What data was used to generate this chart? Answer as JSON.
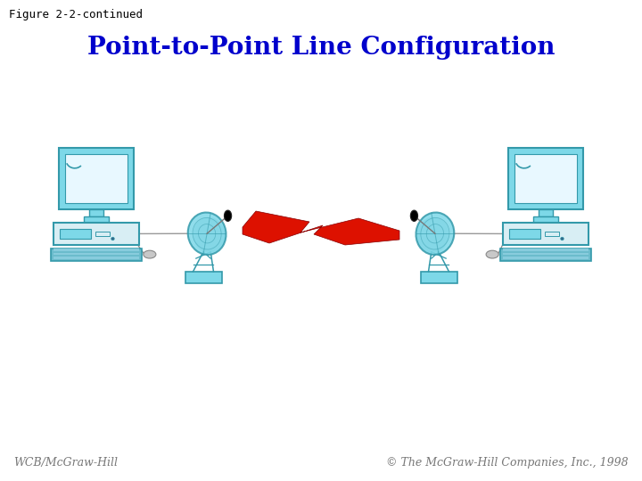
{
  "title": "Point-to-Point Line Configuration",
  "figure_label": "Figure 2-2-continued",
  "footer_left": "WCB/McGraw-Hill",
  "footer_right": "© The McGraw-Hill Companies, Inc., 1998",
  "title_color": "#0000CC",
  "background_color": "#FFFFFF",
  "figure_label_font": 9,
  "title_fontsize": 20,
  "footer_fontsize": 9,
  "computer_color": "#7DD8E8",
  "screen_color": "#C8EEFA",
  "screen_inner": "#E8F8FF",
  "cpu_color": "#D8EEF4",
  "kbd_color": "#6BBCCC",
  "dish_color": "#7DD8E8",
  "dish_inner": "#A8D8E8",
  "lightning_color": "#DD1100",
  "line_color": "#999999",
  "edge_color": "#3399AA"
}
